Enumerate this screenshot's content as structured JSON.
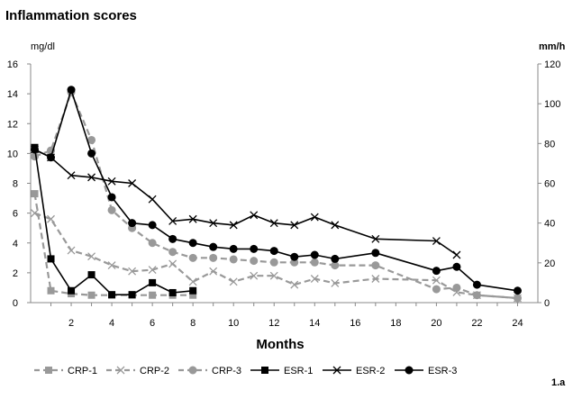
{
  "chart_data": {
    "type": "line",
    "title": "Inflammation scores",
    "xlabel": "Months",
    "ylabel_left": "mg/dl",
    "ylabel_right": "mm/h",
    "figure_label": "1.a",
    "xlim": [
      0,
      25
    ],
    "x_ticks": [
      2,
      4,
      6,
      8,
      10,
      12,
      14,
      16,
      18,
      20,
      22,
      24
    ],
    "ylim_left": [
      0,
      16
    ],
    "y_ticks_left": [
      0,
      2,
      4,
      6,
      8,
      10,
      12,
      14,
      16
    ],
    "ylim_right": [
      0,
      120
    ],
    "y_ticks_right": [
      0,
      20,
      40,
      60,
      80,
      100,
      120
    ],
    "grid": false,
    "legend_position": "bottom",
    "series": [
      {
        "name": "CRP-1",
        "axis": "left",
        "color": "#999999",
        "line": "dashed",
        "marker": "square",
        "x": [
          0.2,
          1,
          2,
          3,
          4,
          5,
          6,
          7,
          8
        ],
        "y": [
          7.3,
          0.8,
          0.6,
          0.5,
          0.5,
          0.5,
          0.5,
          0.5,
          0.5
        ]
      },
      {
        "name": "CRP-2",
        "axis": "left",
        "color": "#999999",
        "line": "dashed",
        "marker": "x",
        "x": [
          0.2,
          1,
          2,
          3,
          4,
          5,
          6,
          7,
          8,
          9,
          10,
          11,
          12,
          13,
          14,
          15,
          17,
          20,
          21,
          22,
          24
        ],
        "y": [
          6.0,
          5.6,
          3.5,
          3.1,
          2.5,
          2.1,
          2.2,
          2.6,
          1.4,
          2.1,
          1.4,
          1.8,
          1.8,
          1.2,
          1.6,
          1.3,
          1.6,
          1.5,
          0.7,
          0.5,
          0.3
        ]
      },
      {
        "name": "CRP-3",
        "axis": "left",
        "color": "#999999",
        "line": "dashed",
        "marker": "circle",
        "x": [
          0.2,
          1,
          2,
          3,
          4,
          5,
          6,
          7,
          8,
          9,
          10,
          11,
          12,
          13,
          14,
          15,
          17,
          20,
          21,
          22,
          24
        ],
        "y": [
          9.8,
          10.2,
          14.1,
          10.9,
          6.2,
          5.0,
          4.0,
          3.4,
          3.0,
          3.0,
          2.9,
          2.8,
          2.7,
          2.7,
          2.7,
          2.5,
          2.5,
          0.9,
          1.0,
          0.5,
          0.3
        ]
      },
      {
        "name": "ESR-1",
        "axis": "right",
        "color": "#000000",
        "line": "solid",
        "marker": "square",
        "x": [
          0.2,
          1,
          2,
          3,
          4,
          5,
          6,
          7,
          8
        ],
        "y": [
          78,
          22,
          6,
          14,
          4,
          4,
          10,
          5,
          6
        ]
      },
      {
        "name": "ESR-2",
        "axis": "right",
        "color": "#000000",
        "line": "solid",
        "marker": "x",
        "x": [
          0.2,
          1,
          2,
          3,
          4,
          5,
          6,
          7,
          8,
          9,
          10,
          11,
          12,
          13,
          14,
          15,
          17,
          20,
          21
        ],
        "y": [
          77,
          73,
          64,
          63,
          61,
          60,
          52,
          41,
          42,
          40,
          39,
          44,
          40,
          39,
          43,
          39,
          32,
          31,
          24
        ]
      },
      {
        "name": "ESR-3",
        "axis": "right",
        "color": "#000000",
        "line": "solid",
        "marker": "circle",
        "x": [
          0.2,
          1,
          2,
          3,
          4,
          5,
          6,
          7,
          8,
          9,
          10,
          11,
          12,
          13,
          14,
          15,
          17,
          20,
          21,
          22,
          24
        ],
        "y": [
          77,
          73,
          107,
          75,
          53,
          40,
          39,
          32,
          30,
          28,
          27,
          27,
          26,
          23,
          24,
          22,
          25,
          16,
          18,
          9,
          6
        ]
      }
    ]
  }
}
